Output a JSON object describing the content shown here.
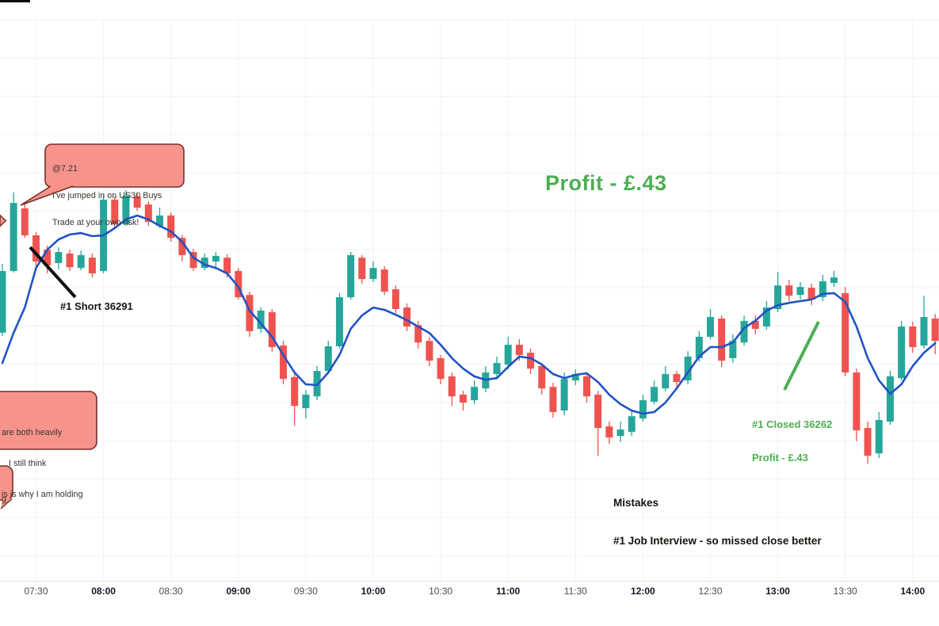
{
  "app": {
    "description": "intraday candlestick trading chart with trade annotations"
  },
  "colors": {
    "background": "#ffffff",
    "grid": "#f0f3fa",
    "axis_separator": "#dde1e8",
    "candle_up": "#26a69a",
    "candle_down": "#ef5350",
    "ma_line": "#2153c4",
    "annotation_green": "#4caf50",
    "annotation_black": "#111111",
    "bubble_fill": "#f6948c",
    "bubble_border": "#76302c",
    "axis_text_major": "#131722",
    "axis_text_minor": "#4a4d57"
  },
  "annotations": {
    "profit_banner": "Profit - £.43",
    "short_label": "#1 Short 36291",
    "closed": {
      "line1": "#1 Closed 36262",
      "line2": "Profit - £.43"
    },
    "mistakes": {
      "line1": "Mistakes",
      "line2": "#1 Job Interview - so missed close better"
    },
    "bubble_top": {
      "lines": [
        "@7.21",
        "I've jumped in on US30 Buys",
        "Trade at your own risk!"
      ]
    },
    "bubble_left_a": {
      "lines": [
        "are both heavily",
        "I still think",
        "is is why I am holding"
      ]
    },
    "bubble_left_b": {
      "lines": [
        "g"
      ]
    }
  },
  "chart_data": {
    "type": "candlestick",
    "interval": "5m",
    "grid": true,
    "price_range": {
      "top": 36378.9,
      "bottom": 36160.5
    },
    "x_axis": {
      "ticks": [
        {
          "t": "07:30",
          "label": "07:30",
          "major": false
        },
        {
          "t": "08:00",
          "label": "08:00",
          "major": true
        },
        {
          "t": "08:30",
          "label": "08:30",
          "major": false
        },
        {
          "t": "09:00",
          "label": "09:00",
          "major": true
        },
        {
          "t": "09:30",
          "label": "09:30",
          "major": false
        },
        {
          "t": "10:00",
          "label": "10:00",
          "major": true
        },
        {
          "t": "10:30",
          "label": "10:30",
          "major": false
        },
        {
          "t": "11:00",
          "label": "11:00",
          "major": true
        },
        {
          "t": "11:30",
          "label": "11:30",
          "major": false
        },
        {
          "t": "12:00",
          "label": "12:00",
          "major": true
        },
        {
          "t": "12:30",
          "label": "12:30",
          "major": false
        },
        {
          "t": "13:00",
          "label": "13:00",
          "major": true
        },
        {
          "t": "13:30",
          "label": "13:30",
          "major": false
        },
        {
          "t": "14:00",
          "label": "14:00",
          "major": true
        }
      ]
    },
    "candles": [
      [
        "07:15",
        36257.1,
        36283.9,
        36255.8,
        36281.1
      ],
      [
        "07:20",
        36281.1,
        36311.7,
        36280.5,
        36307.6
      ],
      [
        "07:25",
        36305.5,
        36307.9,
        36294.0,
        36295.0
      ],
      [
        "07:30",
        36295.0,
        36296.2,
        36281.7,
        36284.8
      ],
      [
        "07:35",
        36289.4,
        36291.0,
        36280.2,
        36283.3
      ],
      [
        "07:40",
        36284.2,
        36290.3,
        36281.7,
        36288.5
      ],
      [
        "07:45",
        36287.9,
        36289.4,
        36281.1,
        36282.6
      ],
      [
        "07:50",
        36282.3,
        36289.1,
        36281.4,
        36287.3
      ],
      [
        "07:55",
        36286.3,
        36287.9,
        36278.6,
        36280.2
      ],
      [
        "08:00",
        36281.1,
        36311.0,
        36280.2,
        36308.9
      ],
      [
        "08:05",
        36308.9,
        36310.1,
        36298.1,
        36299.3
      ],
      [
        "08:10",
        36299.3,
        36312.6,
        36298.7,
        36310.4
      ],
      [
        "08:15",
        36310.1,
        36311.3,
        36304.5,
        36305.8
      ],
      [
        "08:20",
        36307.0,
        36308.2,
        36298.7,
        36300.2
      ],
      [
        "08:25",
        36298.7,
        36305.8,
        36297.8,
        36302.7
      ],
      [
        "08:30",
        36302.7,
        36303.9,
        36292.5,
        36294.0
      ],
      [
        "08:35",
        36294.0,
        36295.2,
        36284.8,
        36287.3
      ],
      [
        "08:40",
        36288.5,
        36289.7,
        36281.1,
        36282.3
      ],
      [
        "08:45",
        36282.3,
        36287.9,
        36281.4,
        36286.3
      ],
      [
        "08:50",
        36284.8,
        36288.5,
        36282.3,
        36287.0
      ],
      [
        "08:55",
        36286.3,
        36287.6,
        36278.6,
        36280.2
      ],
      [
        "09:00",
        36281.1,
        36282.3,
        36270.0,
        36270.9
      ],
      [
        "09:05",
        36271.8,
        36273.1,
        36255.5,
        36257.7
      ],
      [
        "09:10",
        36258.6,
        36266.9,
        36257.0,
        36265.7
      ],
      [
        "09:15",
        36265.1,
        36266.3,
        36249.6,
        36251.5
      ],
      [
        "09:20",
        36252.1,
        36253.9,
        36237.0,
        36239.1
      ],
      [
        "09:25",
        36239.8,
        36241.6,
        36220.9,
        36228.6
      ],
      [
        "09:30",
        36227.7,
        36234.8,
        36223.7,
        36233.0
      ],
      [
        "09:35",
        36232.3,
        36244.1,
        36230.8,
        36242.2
      ],
      [
        "09:40",
        36242.2,
        36253.9,
        36241.0,
        36251.8
      ],
      [
        "09:45",
        36251.8,
        36272.5,
        36250.9,
        36270.9
      ],
      [
        "09:50",
        36270.9,
        36288.5,
        36270.0,
        36287.3
      ],
      [
        "09:55",
        36286.3,
        36287.3,
        36276.2,
        36278.0
      ],
      [
        "10:00",
        36278.0,
        36284.8,
        36276.8,
        36282.3
      ],
      [
        "10:05",
        36281.7,
        36283.0,
        36271.8,
        36273.1
      ],
      [
        "10:10",
        36274.0,
        36275.5,
        36264.7,
        36266.3
      ],
      [
        "10:15",
        36266.9,
        36268.5,
        36257.7,
        36259.5
      ],
      [
        "10:20",
        36260.1,
        36261.7,
        36250.9,
        36253.3
      ],
      [
        "10:25",
        36253.9,
        36255.5,
        36244.1,
        36246.2
      ],
      [
        "10:30",
        36247.2,
        36248.4,
        36237.0,
        36239.1
      ],
      [
        "10:35",
        36240.1,
        36241.6,
        36228.6,
        36232.3
      ],
      [
        "10:40",
        36233.0,
        36234.5,
        36226.8,
        36229.9
      ],
      [
        "10:45",
        36230.8,
        36238.5,
        36229.3,
        36236.0
      ],
      [
        "10:50",
        36235.4,
        36244.1,
        36233.9,
        36241.6
      ],
      [
        "10:55",
        36241.0,
        36247.8,
        36239.1,
        36245.3
      ],
      [
        "11:00",
        36244.7,
        36255.5,
        36242.8,
        36252.4
      ],
      [
        "11:05",
        36252.4,
        36254.6,
        36246.2,
        36248.4
      ],
      [
        "11:10",
        36249.3,
        36250.9,
        36241.0,
        36243.1
      ],
      [
        "11:15",
        36244.1,
        36245.3,
        36233.0,
        36235.4
      ],
      [
        "11:20",
        36236.0,
        36237.6,
        36224.0,
        36226.2
      ],
      [
        "11:25",
        36226.8,
        36241.6,
        36225.0,
        36239.1
      ],
      [
        "11:30",
        36238.5,
        36242.8,
        36236.7,
        36241.0
      ],
      [
        "11:35",
        36240.1,
        36241.6,
        36229.9,
        36232.3
      ],
      [
        "11:40",
        36233.0,
        36234.5,
        36209.2,
        36220.0
      ],
      [
        "11:45",
        36220.6,
        36222.5,
        36213.8,
        36216.3
      ],
      [
        "11:50",
        36216.9,
        36222.5,
        36214.5,
        36219.4
      ],
      [
        "11:55",
        36218.5,
        36226.8,
        36216.9,
        36224.6
      ],
      [
        "12:00",
        36223.7,
        36233.0,
        36222.5,
        36230.8
      ],
      [
        "12:05",
        36230.2,
        36238.5,
        36229.3,
        36236.0
      ],
      [
        "12:10",
        36235.4,
        36244.1,
        36234.2,
        36241.0
      ],
      [
        "12:15",
        36241.0,
        36242.2,
        36235.4,
        36237.9
      ],
      [
        "12:20",
        36238.5,
        36249.9,
        36237.0,
        36247.8
      ],
      [
        "12:25",
        36247.2,
        36257.7,
        36245.9,
        36255.5
      ],
      [
        "12:30",
        36255.5,
        36266.3,
        36254.6,
        36263.2
      ],
      [
        "12:35",
        36262.6,
        36263.8,
        36243.8,
        36246.2
      ],
      [
        "12:40",
        36247.2,
        36256.4,
        36245.3,
        36253.9
      ],
      [
        "12:45",
        36253.3,
        36263.8,
        36252.1,
        36261.7
      ],
      [
        "12:50",
        36261.7,
        36263.8,
        36256.4,
        36258.6
      ],
      [
        "12:55",
        36259.5,
        36269.4,
        36258.3,
        36266.9
      ],
      [
        "13:00",
        36266.3,
        36280.8,
        36265.1,
        36275.5
      ],
      [
        "13:05",
        36275.5,
        36277.7,
        36269.4,
        36271.5
      ],
      [
        "13:10",
        36271.8,
        36276.8,
        36270.0,
        36274.9
      ],
      [
        "13:15",
        36274.6,
        36276.2,
        36267.8,
        36270.0
      ],
      [
        "13:20",
        36270.9,
        36279.6,
        36269.4,
        36277.1
      ],
      [
        "13:25",
        36276.5,
        36281.1,
        36274.9,
        36278.6
      ],
      [
        "13:30",
        36272.5,
        36274.9,
        36240.1,
        36241.6
      ],
      [
        "13:35",
        36241.6,
        36243.1,
        36214.8,
        36219.1
      ],
      [
        "13:40",
        36220.0,
        36222.5,
        36206.1,
        36209.2
      ],
      [
        "13:45",
        36210.1,
        36226.2,
        36208.3,
        36223.1
      ],
      [
        "13:50",
        36222.5,
        36242.2,
        36221.2,
        36240.1
      ],
      [
        "13:55",
        36239.4,
        36261.7,
        36238.5,
        36259.5
      ],
      [
        "14:00",
        36259.5,
        36261.4,
        36249.3,
        36251.5
      ],
      [
        "14:05",
        36252.1,
        36271.5,
        36250.9,
        36263.2
      ],
      [
        "14:10",
        36262.6,
        36264.4,
        36248.7,
        36253.9
      ]
    ],
    "ma": [
      36245.3,
      36257.0,
      36266.9,
      36282.3,
      36289.4,
      36293.4,
      36295.3,
      36295.9,
      36294.7,
      36295.0,
      36297.8,
      36301.2,
      36302.7,
      36301.2,
      36298.7,
      36296.5,
      36292.5,
      36286.3,
      36283.6,
      36282.3,
      36280.2,
      36274.9,
      36265.7,
      36260.7,
      36255.5,
      36248.4,
      36241.6,
      36237.0,
      36236.7,
      36241.6,
      36248.4,
      36258.6,
      36263.8,
      36266.9,
      36266.0,
      36264.1,
      36262.0,
      36259.5,
      36257.0,
      36252.4,
      36247.2,
      36243.1,
      36240.1,
      36238.8,
      36239.4,
      36243.8,
      36247.8,
      36247.2,
      36244.7,
      36241.0,
      36239.4,
      36240.7,
      36241.3,
      36237.9,
      36233.0,
      36229.3,
      36226.8,
      36225.6,
      36226.2,
      36229.9,
      36235.4,
      36241.6,
      36247.8,
      36251.5,
      36251.5,
      36253.3,
      36258.9,
      36261.7,
      36265.7,
      36267.8,
      36268.7,
      36269.4,
      36270.0,
      36272.2,
      36272.5,
      36269.1,
      36259.5,
      36247.2,
      36238.5,
      36233.3,
      36237.0,
      36244.1,
      36249.3,
      36253.0
    ],
    "trade_markers": [
      {
        "label": "#1 Short 36291",
        "price": 36291,
        "time": "07:30",
        "side": "short"
      },
      {
        "label": "#1 Closed 36262",
        "price": 36262,
        "time": "13:25",
        "result": "Profit - £.43"
      }
    ]
  }
}
